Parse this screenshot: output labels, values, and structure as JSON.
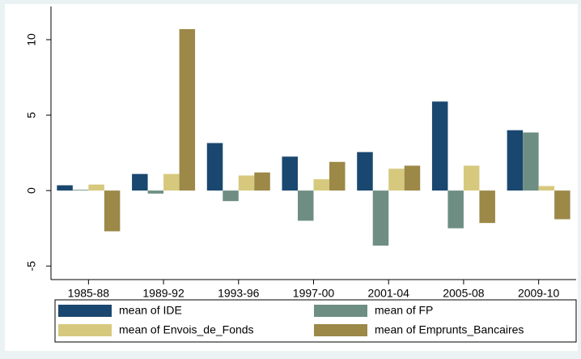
{
  "chart_data": {
    "type": "bar",
    "categories": [
      "1985-88",
      "1989-92",
      "1993-96",
      "1997-00",
      "2001-04",
      "2005-08",
      "2009-10"
    ],
    "series": [
      {
        "name": "mean of IDE",
        "color": "#1a476f",
        "values": [
          0.35,
          1.1,
          3.15,
          2.25,
          2.55,
          5.9,
          4.0
        ]
      },
      {
        "name": "mean of FP",
        "color": "#6e8e84",
        "values": [
          0.05,
          -0.2,
          -0.7,
          -2.0,
          -3.65,
          -2.5,
          3.85
        ]
      },
      {
        "name": "mean of Envois_de_Fonds",
        "color": "#d6c97e",
        "values": [
          0.4,
          1.1,
          1.0,
          0.75,
          1.45,
          1.65,
          0.3
        ]
      },
      {
        "name": "mean of Emprunts_Bancaires",
        "color": "#9c8847",
        "values": [
          -2.7,
          10.7,
          1.2,
          1.9,
          1.65,
          -2.15,
          -1.9
        ]
      }
    ],
    "ylim": [
      -5.9,
      12.2
    ],
    "yticks": [
      -5,
      0,
      5,
      10
    ],
    "grid": false,
    "legend": "bottom"
  }
}
